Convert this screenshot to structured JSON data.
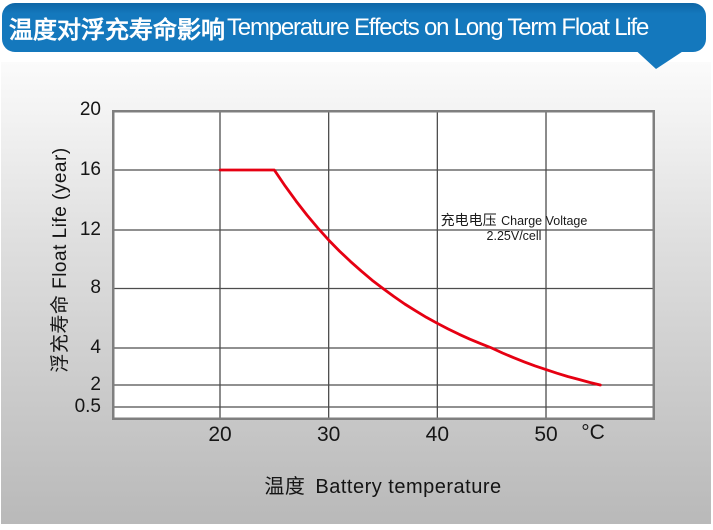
{
  "header": {
    "title_zh": "温度对浮充寿命影响",
    "title_en": "Temperature Effects on Long Term Float Life",
    "bg_color": "#1478bd"
  },
  "chart_data": {
    "type": "line",
    "title": "温度对浮充寿命影响 Temperature Effects on Long Term Float Life",
    "xlabel_zh": "温度",
    "xlabel_en": "Battery temperature",
    "x_unit": "°C",
    "ylabel": "浮充寿命  Float Life (year)",
    "x_ticks": [
      20,
      30,
      40,
      50
    ],
    "y_ticks": [
      20,
      16,
      12,
      8,
      4,
      2,
      0.5
    ],
    "xlim": [
      10,
      60
    ],
    "ylim_top": 20,
    "grid": true,
    "legend_position": "none",
    "annotation": {
      "line1_zh": "充电电压",
      "line1_en": "Charge Voltage",
      "line2": "2.25V/cell"
    },
    "colors": {
      "curve": "#e60012",
      "grid": "#4d4d4d",
      "frame": "#7f7f7f"
    },
    "series": [
      {
        "name": "Float life at 2.25V/cell",
        "color": "#e60012",
        "points": [
          [
            20,
            16
          ],
          [
            25,
            16
          ],
          [
            26,
            14.93
          ],
          [
            27,
            13.93
          ],
          [
            28,
            13.0
          ],
          [
            29,
            12.13
          ],
          [
            30,
            11.31
          ],
          [
            31,
            10.56
          ],
          [
            32,
            9.85
          ],
          [
            33,
            9.19
          ],
          [
            34,
            8.57
          ],
          [
            35,
            8
          ],
          [
            36,
            7.46
          ],
          [
            37,
            6.96
          ],
          [
            38,
            6.5
          ],
          [
            39,
            6.06
          ],
          [
            40,
            5.66
          ],
          [
            41,
            5.28
          ],
          [
            42,
            4.92
          ],
          [
            43,
            4.59
          ],
          [
            44,
            4.29
          ],
          [
            45,
            4
          ],
          [
            46,
            3.73
          ],
          [
            47,
            3.48
          ],
          [
            48,
            3.25
          ],
          [
            49,
            3.03
          ],
          [
            50,
            2.83
          ],
          [
            51,
            2.64
          ],
          [
            52,
            2.46
          ],
          [
            53,
            2.3
          ],
          [
            54,
            2.14
          ],
          [
            55,
            2
          ]
        ]
      }
    ]
  }
}
